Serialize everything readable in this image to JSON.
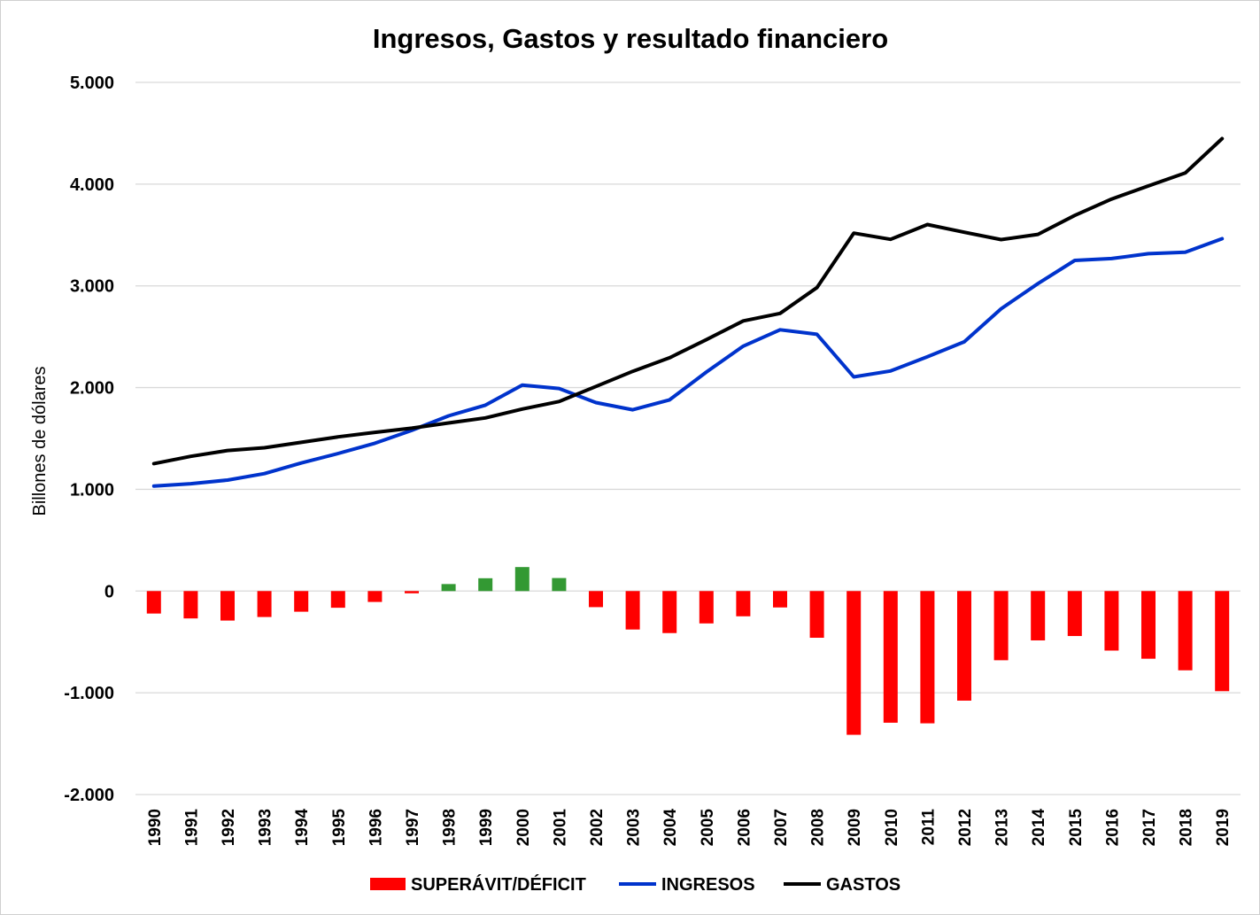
{
  "chart_data": {
    "type": "bar+line",
    "title": "Ingresos, Gastos y resultado financiero",
    "ylabel": "Billones de dólares",
    "xlabel": "",
    "ylim": [
      -2000,
      5000
    ],
    "yticks": [
      5000,
      4000,
      3000,
      2000,
      1000,
      0,
      -1000,
      -2000
    ],
    "ytick_labels": [
      "5.000",
      "4.000",
      "3.000",
      "2.000",
      "1.000",
      "0",
      "-1.000",
      "-2.000"
    ],
    "grid": true,
    "legend_position": "bottom",
    "categories": [
      "1990",
      "1991",
      "1992",
      "1993",
      "1994",
      "1995",
      "1996",
      "1997",
      "1998",
      "1999",
      "2000",
      "2001",
      "2002",
      "2003",
      "2004",
      "2005",
      "2006",
      "2007",
      "2008",
      "2009",
      "2010",
      "2011",
      "2012",
      "2013",
      "2014",
      "2015",
      "2016",
      "2017",
      "2018",
      "2019"
    ],
    "series": [
      {
        "name": "SUPERÁVIT/DÉFICIT",
        "type": "bar",
        "color_negative": "#ff0000",
        "color_positive": "#339933",
        "values": [
          -221,
          -269,
          -290,
          -255,
          -203,
          -164,
          -107,
          -22,
          69,
          126,
          236,
          128,
          -158,
          -378,
          -413,
          -318,
          -248,
          -161,
          -459,
          -1413,
          -1294,
          -1300,
          -1077,
          -680,
          -485,
          -442,
          -585,
          -665,
          -779,
          -984
        ]
      },
      {
        "name": "INGRESOS",
        "type": "line",
        "color": "#0033cc",
        "values": [
          1032,
          1055,
          1091,
          1154,
          1259,
          1352,
          1453,
          1579,
          1722,
          1827,
          2025,
          1991,
          1853,
          1782,
          1880,
          2153,
          2407,
          2568,
          2524,
          2105,
          2163,
          2303,
          2450,
          2775,
          3022,
          3250,
          3268,
          3316,
          3330,
          3463
        ]
      },
      {
        "name": "GASTOS",
        "type": "line",
        "color": "#000000",
        "values": [
          1253,
          1324,
          1382,
          1409,
          1462,
          1516,
          1560,
          1601,
          1652,
          1702,
          1789,
          1863,
          2011,
          2160,
          2293,
          2472,
          2655,
          2729,
          2983,
          3518,
          3457,
          3603,
          3527,
          3455,
          3506,
          3692,
          3853,
          3982,
          4109,
          4447
        ]
      }
    ]
  }
}
